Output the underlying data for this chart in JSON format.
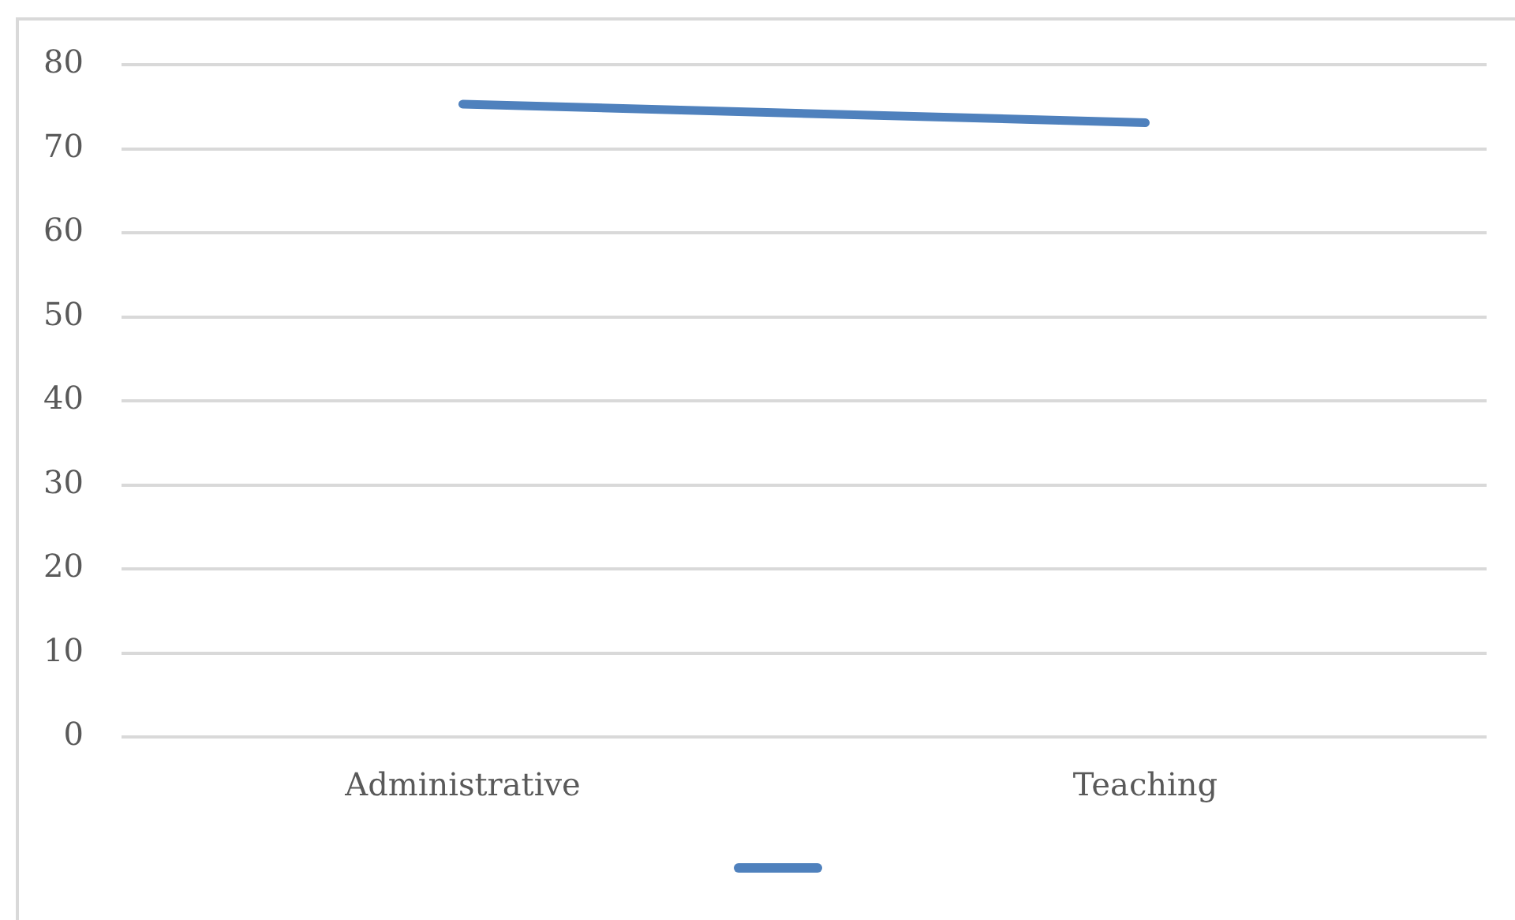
{
  "chart_data": {
    "type": "line",
    "categories": [
      "Administrative",
      "Teaching"
    ],
    "series": [
      {
        "color": "#4f81bd",
        "values": [
          75.3,
          73.1
        ]
      }
    ],
    "ylim": [
      0,
      80
    ],
    "yticks": [
      0,
      10,
      20,
      30,
      40,
      50,
      60,
      70,
      80
    ],
    "grid": "y",
    "marker": "none",
    "line_style": "solid"
  }
}
